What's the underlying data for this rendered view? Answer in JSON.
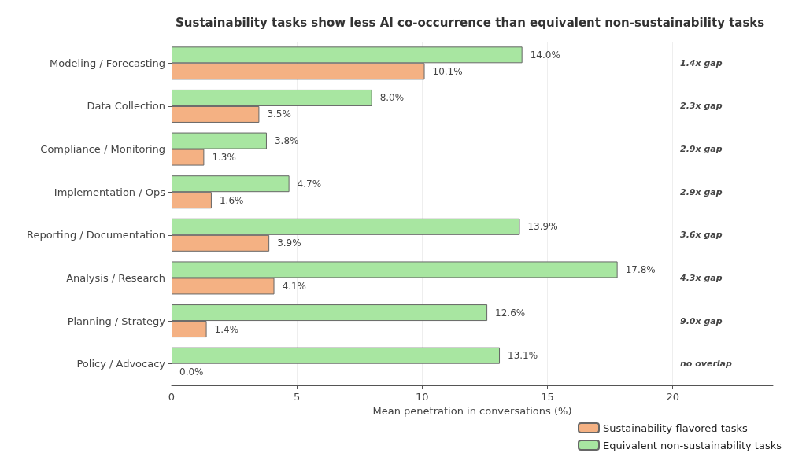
{
  "chart_data": {
    "type": "bar",
    "orientation": "horizontal",
    "title": "Sustainability tasks show less AI co-occurrence than equivalent non-sustainability tasks",
    "xlabel": "Mean penetration in conversations (%)",
    "categories": [
      "Modeling / Forecasting",
      "Data Collection",
      "Compliance / Monitoring",
      "Implementation / Ops",
      "Reporting / Documentation",
      "Analysis / Research",
      "Planning / Strategy",
      "Policy / Advocacy"
    ],
    "series": [
      {
        "name": "Sustainability-flavored tasks",
        "color": "#f4b183",
        "values": [
          10.1,
          3.5,
          1.3,
          1.6,
          3.9,
          4.1,
          1.4,
          0.0
        ],
        "value_labels": [
          "10.1%",
          "3.5%",
          "1.3%",
          "1.6%",
          "3.9%",
          "4.1%",
          "1.4%",
          "0.0%"
        ]
      },
      {
        "name": "Equivalent non-sustainability tasks",
        "color": "#a8e6a1",
        "values": [
          14.0,
          8.0,
          3.8,
          4.7,
          13.9,
          17.8,
          12.6,
          13.1
        ],
        "value_labels": [
          "14.0%",
          "8.0%",
          "3.8%",
          "4.7%",
          "13.9%",
          "17.8%",
          "12.6%",
          "13.1%"
        ]
      }
    ],
    "xlim": [
      0,
      24
    ],
    "xticks": [
      0,
      5,
      10,
      15,
      20
    ],
    "grid": "x",
    "legend": "bottom right",
    "annotations": [
      "1.4x gap",
      "2.3x gap",
      "2.9x gap",
      "2.9x gap",
      "3.6x gap",
      "4.3x gap",
      "9.0x gap",
      "no overlap"
    ]
  }
}
